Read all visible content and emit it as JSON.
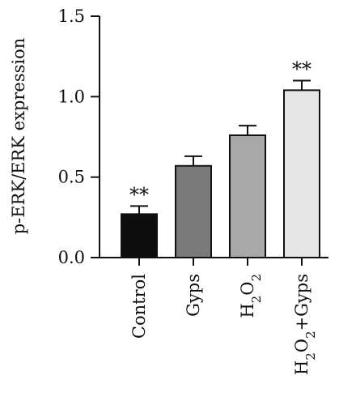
{
  "chart_data": {
    "type": "bar",
    "title": "",
    "xlabel": "",
    "ylabel": "p-ERK/ERK expression",
    "ylim": [
      0,
      1.5
    ],
    "yticks": [
      "0.0",
      "0.5",
      "1.0",
      "1.5"
    ],
    "ytick_values": [
      0,
      0.5,
      1.0,
      1.5
    ],
    "grid": false,
    "legend": "none",
    "categories": [
      "Control",
      "Gyps",
      "H2O2",
      "H2O2+Gyps"
    ],
    "values": [
      0.27,
      0.57,
      0.76,
      1.04
    ],
    "errors": [
      0.05,
      0.06,
      0.06,
      0.06
    ],
    "annotations": [
      "**",
      "",
      "",
      "**"
    ],
    "colors": [
      "#0d0d0d",
      "#7a7a7a",
      "#a8a8a8",
      "#e6e6e6"
    ]
  }
}
